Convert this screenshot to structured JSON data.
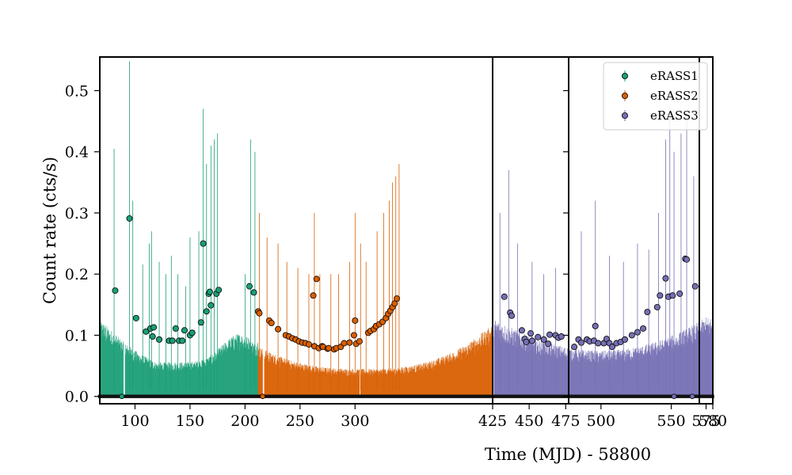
{
  "chart_data": {
    "type": "scatter",
    "xlabel": "Time (MJD) - 58800",
    "ylabel": "Count rate (cts/s)",
    "ylim": [
      -0.012,
      0.555
    ],
    "y_ticks": [
      0.0,
      0.1,
      0.2,
      0.3,
      0.4,
      0.5
    ],
    "y_tick_labels": [
      "0.0",
      "0.1",
      "0.2",
      "0.3",
      "0.4",
      "0.5"
    ],
    "grid": false,
    "legend": {
      "placement": "top-right"
    },
    "panels": [
      {
        "xlim": [
          68,
          425
        ],
        "ticks": [
          100,
          150,
          200,
          250,
          300,
          425
        ],
        "tick_labels": [
          "100",
          "150",
          "200",
          "250",
          "300",
          "425"
        ]
      },
      {
        "xlim": [
          425,
          477
        ],
        "ticks": [
          450,
          475
        ],
        "tick_labels": [
          "450",
          "475"
        ]
      },
      {
        "xlim": [
          477,
          570
        ],
        "ticks": [
          500,
          550
        ],
        "tick_labels": [
          "500",
          "550"
        ]
      },
      {
        "xlim": [
          570,
          580
        ],
        "ticks": [
          575,
          580
        ],
        "tick_labels": [
          "575",
          "580"
        ]
      }
    ],
    "series": [
      {
        "name": "eRASS1",
        "color": "#1b9e77",
        "x_range": [
          68,
          212
        ],
        "points": [
          [
            82,
            0.173
          ],
          [
            95,
            0.291
          ],
          [
            101,
            0.128
          ],
          [
            110,
            0.106
          ],
          [
            114,
            0.111
          ],
          [
            116,
            0.098
          ],
          [
            117,
            0.113
          ],
          [
            122,
            0.093
          ],
          [
            131,
            0.091
          ],
          [
            134,
            0.091
          ],
          [
            137,
            0.111
          ],
          [
            140,
            0.091
          ],
          [
            143,
            0.091
          ],
          [
            145,
            0.108
          ],
          [
            150,
            0.1
          ],
          [
            152,
            0.104
          ],
          [
            160,
            0.121
          ],
          [
            162,
            0.25
          ],
          [
            165,
            0.139
          ],
          [
            167,
            0.168
          ],
          [
            168,
            0.171
          ],
          [
            169,
            0.149
          ],
          [
            174,
            0.168
          ],
          [
            176,
            0.174
          ],
          [
            204,
            0.18
          ],
          [
            208,
            0.17
          ]
        ],
        "spikes": [
          [
            81,
            0.405
          ],
          [
            95,
            0.548
          ],
          [
            98,
            0.32
          ],
          [
            107,
            0.216
          ],
          [
            113,
            0.25
          ],
          [
            115,
            0.27
          ],
          [
            122,
            0.22
          ],
          [
            128,
            0.2
          ],
          [
            133,
            0.23
          ],
          [
            139,
            0.2
          ],
          [
            146,
            0.18
          ],
          [
            150,
            0.26
          ],
          [
            158,
            0.27
          ],
          [
            162,
            0.47
          ],
          [
            165,
            0.38
          ],
          [
            169,
            0.41
          ],
          [
            172,
            0.42
          ],
          [
            175,
            0.43
          ],
          [
            200,
            0.2
          ],
          [
            205,
            0.42
          ],
          [
            209,
            0.4
          ]
        ],
        "zero_points": [
          88
        ]
      },
      {
        "name": "eRASS2",
        "color": "#d95f02",
        "x_range": [
          212,
          425
        ],
        "points": [
          [
            212,
            0.139
          ],
          [
            213,
            0.136
          ],
          [
            222,
            0.124
          ],
          [
            224,
            0.12
          ],
          [
            230,
            0.11
          ],
          [
            237,
            0.1
          ],
          [
            240,
            0.098
          ],
          [
            243,
            0.095
          ],
          [
            246,
            0.093
          ],
          [
            249,
            0.09
          ],
          [
            252,
            0.088
          ],
          [
            255,
            0.087
          ],
          [
            258,
            0.085
          ],
          [
            263,
            0.082
          ],
          [
            267,
            0.079
          ],
          [
            270,
            0.082
          ],
          [
            271,
            0.081
          ],
          [
            262,
            0.165
          ],
          [
            265,
            0.192
          ],
          [
            275,
            0.078
          ],
          [
            276,
            0.079
          ],
          [
            281,
            0.077
          ],
          [
            283,
            0.079
          ],
          [
            287,
            0.081
          ],
          [
            290,
            0.087
          ],
          [
            295,
            0.088
          ],
          [
            299,
            0.1
          ],
          [
            300,
            0.124
          ],
          [
            301,
            0.086
          ],
          [
            304,
            0.09
          ],
          [
            312,
            0.104
          ],
          [
            314,
            0.107
          ],
          [
            317,
            0.11
          ],
          [
            319,
            0.115
          ],
          [
            322,
            0.118
          ],
          [
            325,
            0.122
          ],
          [
            328,
            0.128
          ],
          [
            330,
            0.135
          ],
          [
            332,
            0.14
          ],
          [
            334,
            0.146
          ],
          [
            336,
            0.152
          ],
          [
            338,
            0.16
          ]
        ],
        "spikes": [
          [
            213,
            0.3
          ],
          [
            220,
            0.26
          ],
          [
            230,
            0.25
          ],
          [
            238,
            0.22
          ],
          [
            248,
            0.21
          ],
          [
            258,
            0.2
          ],
          [
            263,
            0.3
          ],
          [
            268,
            0.2
          ],
          [
            278,
            0.2
          ],
          [
            285,
            0.2
          ],
          [
            295,
            0.22
          ],
          [
            300,
            0.3
          ],
          [
            305,
            0.25
          ],
          [
            310,
            0.22
          ],
          [
            320,
            0.27
          ],
          [
            326,
            0.3
          ],
          [
            331,
            0.32
          ],
          [
            334,
            0.35
          ],
          [
            337,
            0.36
          ],
          [
            340,
            0.38
          ]
        ],
        "zero_points": [
          216
        ]
      },
      {
        "name": "eRASS3",
        "color": "#7570b3",
        "x_range": [
          425,
          580
        ],
        "points": [
          [
            433,
            0.163
          ],
          [
            437,
            0.137
          ],
          [
            438,
            0.132
          ],
          [
            445,
            0.108
          ],
          [
            447,
            0.094
          ],
          [
            448,
            0.089
          ],
          [
            451,
            0.103
          ],
          [
            452,
            0.091
          ],
          [
            456,
            0.097
          ],
          [
            460,
            0.093
          ],
          [
            463,
            0.086
          ],
          [
            464,
            0.101
          ],
          [
            468,
            0.1
          ],
          [
            470,
            0.096
          ],
          [
            472,
            0.098
          ],
          [
            481,
            0.081
          ],
          [
            484,
            0.093
          ],
          [
            486,
            0.088
          ],
          [
            490,
            0.093
          ],
          [
            492,
            0.09
          ],
          [
            495,
            0.091
          ],
          [
            496,
            0.115
          ],
          [
            498,
            0.087
          ],
          [
            502,
            0.087
          ],
          [
            504,
            0.094
          ],
          [
            506,
            0.087
          ],
          [
            508,
            0.081
          ],
          [
            511,
            0.087
          ],
          [
            514,
            0.089
          ],
          [
            517,
            0.093
          ],
          [
            522,
            0.1
          ],
          [
            526,
            0.105
          ],
          [
            530,
            0.111
          ],
          [
            533,
            0.138
          ],
          [
            540,
            0.146
          ],
          [
            542,
            0.165
          ],
          [
            546,
            0.193
          ],
          [
            548,
            0.163
          ],
          [
            551,
            0.165
          ],
          [
            556,
            0.168
          ],
          [
            560,
            0.225
          ],
          [
            561,
            0.224
          ],
          [
            567,
            0.18
          ]
        ],
        "spikes": [
          [
            430,
            0.3
          ],
          [
            436,
            0.37
          ],
          [
            442,
            0.25
          ],
          [
            452,
            0.22
          ],
          [
            460,
            0.2
          ],
          [
            468,
            0.21
          ],
          [
            486,
            0.27
          ],
          [
            496,
            0.32
          ],
          [
            506,
            0.23
          ],
          [
            516,
            0.22
          ],
          [
            526,
            0.25
          ],
          [
            534,
            0.24
          ],
          [
            541,
            0.3
          ],
          [
            546,
            0.42
          ],
          [
            549,
            0.47
          ],
          [
            552,
            0.4
          ],
          [
            557,
            0.43
          ],
          [
            561,
            0.45
          ],
          [
            566,
            0.36
          ]
        ],
        "zero_points": [
          552,
          565
        ]
      }
    ]
  }
}
